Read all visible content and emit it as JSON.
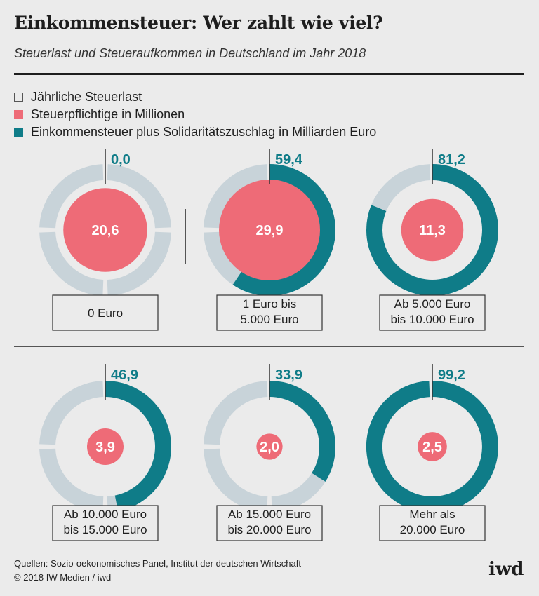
{
  "header": {
    "title": "Einkommensteuer: Wer zahlt wie viel?",
    "subtitle": "Steuerlast und Steueraufkommen in Deutschland im Jahr 2018"
  },
  "legend": [
    {
      "label": "Jährliche Steuerlast",
      "style": "outline"
    },
    {
      "label": "Steuerpflichtige in Millionen",
      "color": "#ee6b77"
    },
    {
      "label": "Einkommensteuer plus Solidaritätszuschlag in Milliarden Euro",
      "color": "#0f7c88"
    }
  ],
  "colors": {
    "ring_track": "#c8d3d9",
    "ring_fill": "#0f7c88",
    "circle": "#ee6b77",
    "value_text": "#0f7c88",
    "background": "#ebebeb"
  },
  "chart_data": {
    "type": "donut",
    "title": "Einkommensteuer: Wer zahlt wie viel?",
    "ring_max": 100,
    "categories": [
      "0 Euro",
      "1 Euro bis 5.000 Euro",
      "Ab 5.000 Euro bis 10.000 Euro",
      "Ab 10.000 Euro bis 15.000 Euro",
      "Ab 15.000 Euro bis 20.000 Euro",
      "Mehr als 20.000 Euro"
    ],
    "series": [
      {
        "name": "Steuerpflichtige in Millionen",
        "values": [
          20.6,
          29.9,
          11.3,
          3.9,
          2.0,
          2.5
        ]
      },
      {
        "name": "Einkommensteuer plus Solidaritätszuschlag in Milliarden Euro",
        "values": [
          0.0,
          59.4,
          81.2,
          46.9,
          33.9,
          99.2
        ]
      }
    ],
    "items": [
      {
        "label_lines": [
          "0 Euro"
        ],
        "taxpayers": 20.6,
        "taxpayers_label": "20,6",
        "revenue": 0.0,
        "revenue_label": "0,0",
        "arc_start_frac": 0.0
      },
      {
        "label_lines": [
          "1 Euro bis",
          "5.000 Euro"
        ],
        "taxpayers": 29.9,
        "taxpayers_label": "29,9",
        "revenue": 59.4,
        "revenue_label": "59,4",
        "arc_start_frac": 0.0
      },
      {
        "label_lines": [
          "Ab 5.000 Euro",
          "bis 10.000 Euro"
        ],
        "taxpayers": 11.3,
        "taxpayers_label": "11,3",
        "revenue": 81.2,
        "revenue_label": "81,2",
        "arc_start_frac": 0.0
      },
      {
        "label_lines": [
          "Ab 10.000 Euro",
          "bis 15.000 Euro"
        ],
        "taxpayers": 3.9,
        "taxpayers_label": "3,9",
        "revenue": 46.9,
        "revenue_label": "46,9",
        "arc_start_frac": 0.0
      },
      {
        "label_lines": [
          "Ab 15.000 Euro",
          "bis 20.000 Euro"
        ],
        "taxpayers": 2.0,
        "taxpayers_label": "2,0",
        "revenue": 33.9,
        "revenue_label": "33,9",
        "arc_start_frac": 0.0
      },
      {
        "label_lines": [
          "Mehr als",
          "20.000 Euro"
        ],
        "taxpayers": 2.5,
        "taxpayers_label": "2,5",
        "revenue": 99.2,
        "revenue_label": "99,2",
        "arc_start_frac": 0.0
      }
    ]
  },
  "footer": {
    "source": "Quellen: Sozio-oekonomisches Panel, Institut der deutschen Wirtschaft",
    "copyright": "© 2018 IW Medien / iwd",
    "logo": "iwd"
  }
}
